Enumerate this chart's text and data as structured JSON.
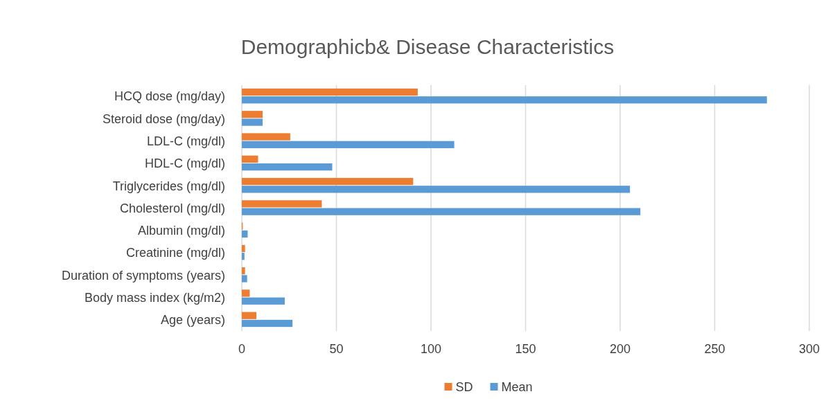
{
  "chart_data": {
    "type": "bar",
    "orientation": "horizontal",
    "title": "Demographicb& Disease Characteristics",
    "categories": [
      "HCQ dose (mg/day)",
      "Steroid dose (mg/day)",
      "LDL-C (mg/dl)",
      "HDL-C (mg/dl)",
      "Triglycerides (mg/dl)",
      "Cholesterol (mg/dl)",
      "Albumin (mg/dl)",
      "Creatinine (mg/dl)",
      "Duration of symptoms (years)",
      "Body mass index (kg/m2)",
      "Age (years)"
    ],
    "series": [
      {
        "name": "SD",
        "color": "#ed7d31",
        "values": [
          93,
          11,
          25.6,
          8.6,
          90.6,
          42.3,
          0.5,
          1.7,
          1.7,
          4.2,
          7.7
        ]
      },
      {
        "name": "Mean",
        "color": "#5b9bd5",
        "values": [
          277.6,
          11,
          112.3,
          47.8,
          205.2,
          210.7,
          3.1,
          1.4,
          2.8,
          22.7,
          26.8
        ]
      }
    ],
    "xlim": [
      0,
      300
    ],
    "xticks": [
      0,
      50,
      100,
      150,
      200,
      250,
      300
    ],
    "grid": "x",
    "legend": "bottom"
  }
}
